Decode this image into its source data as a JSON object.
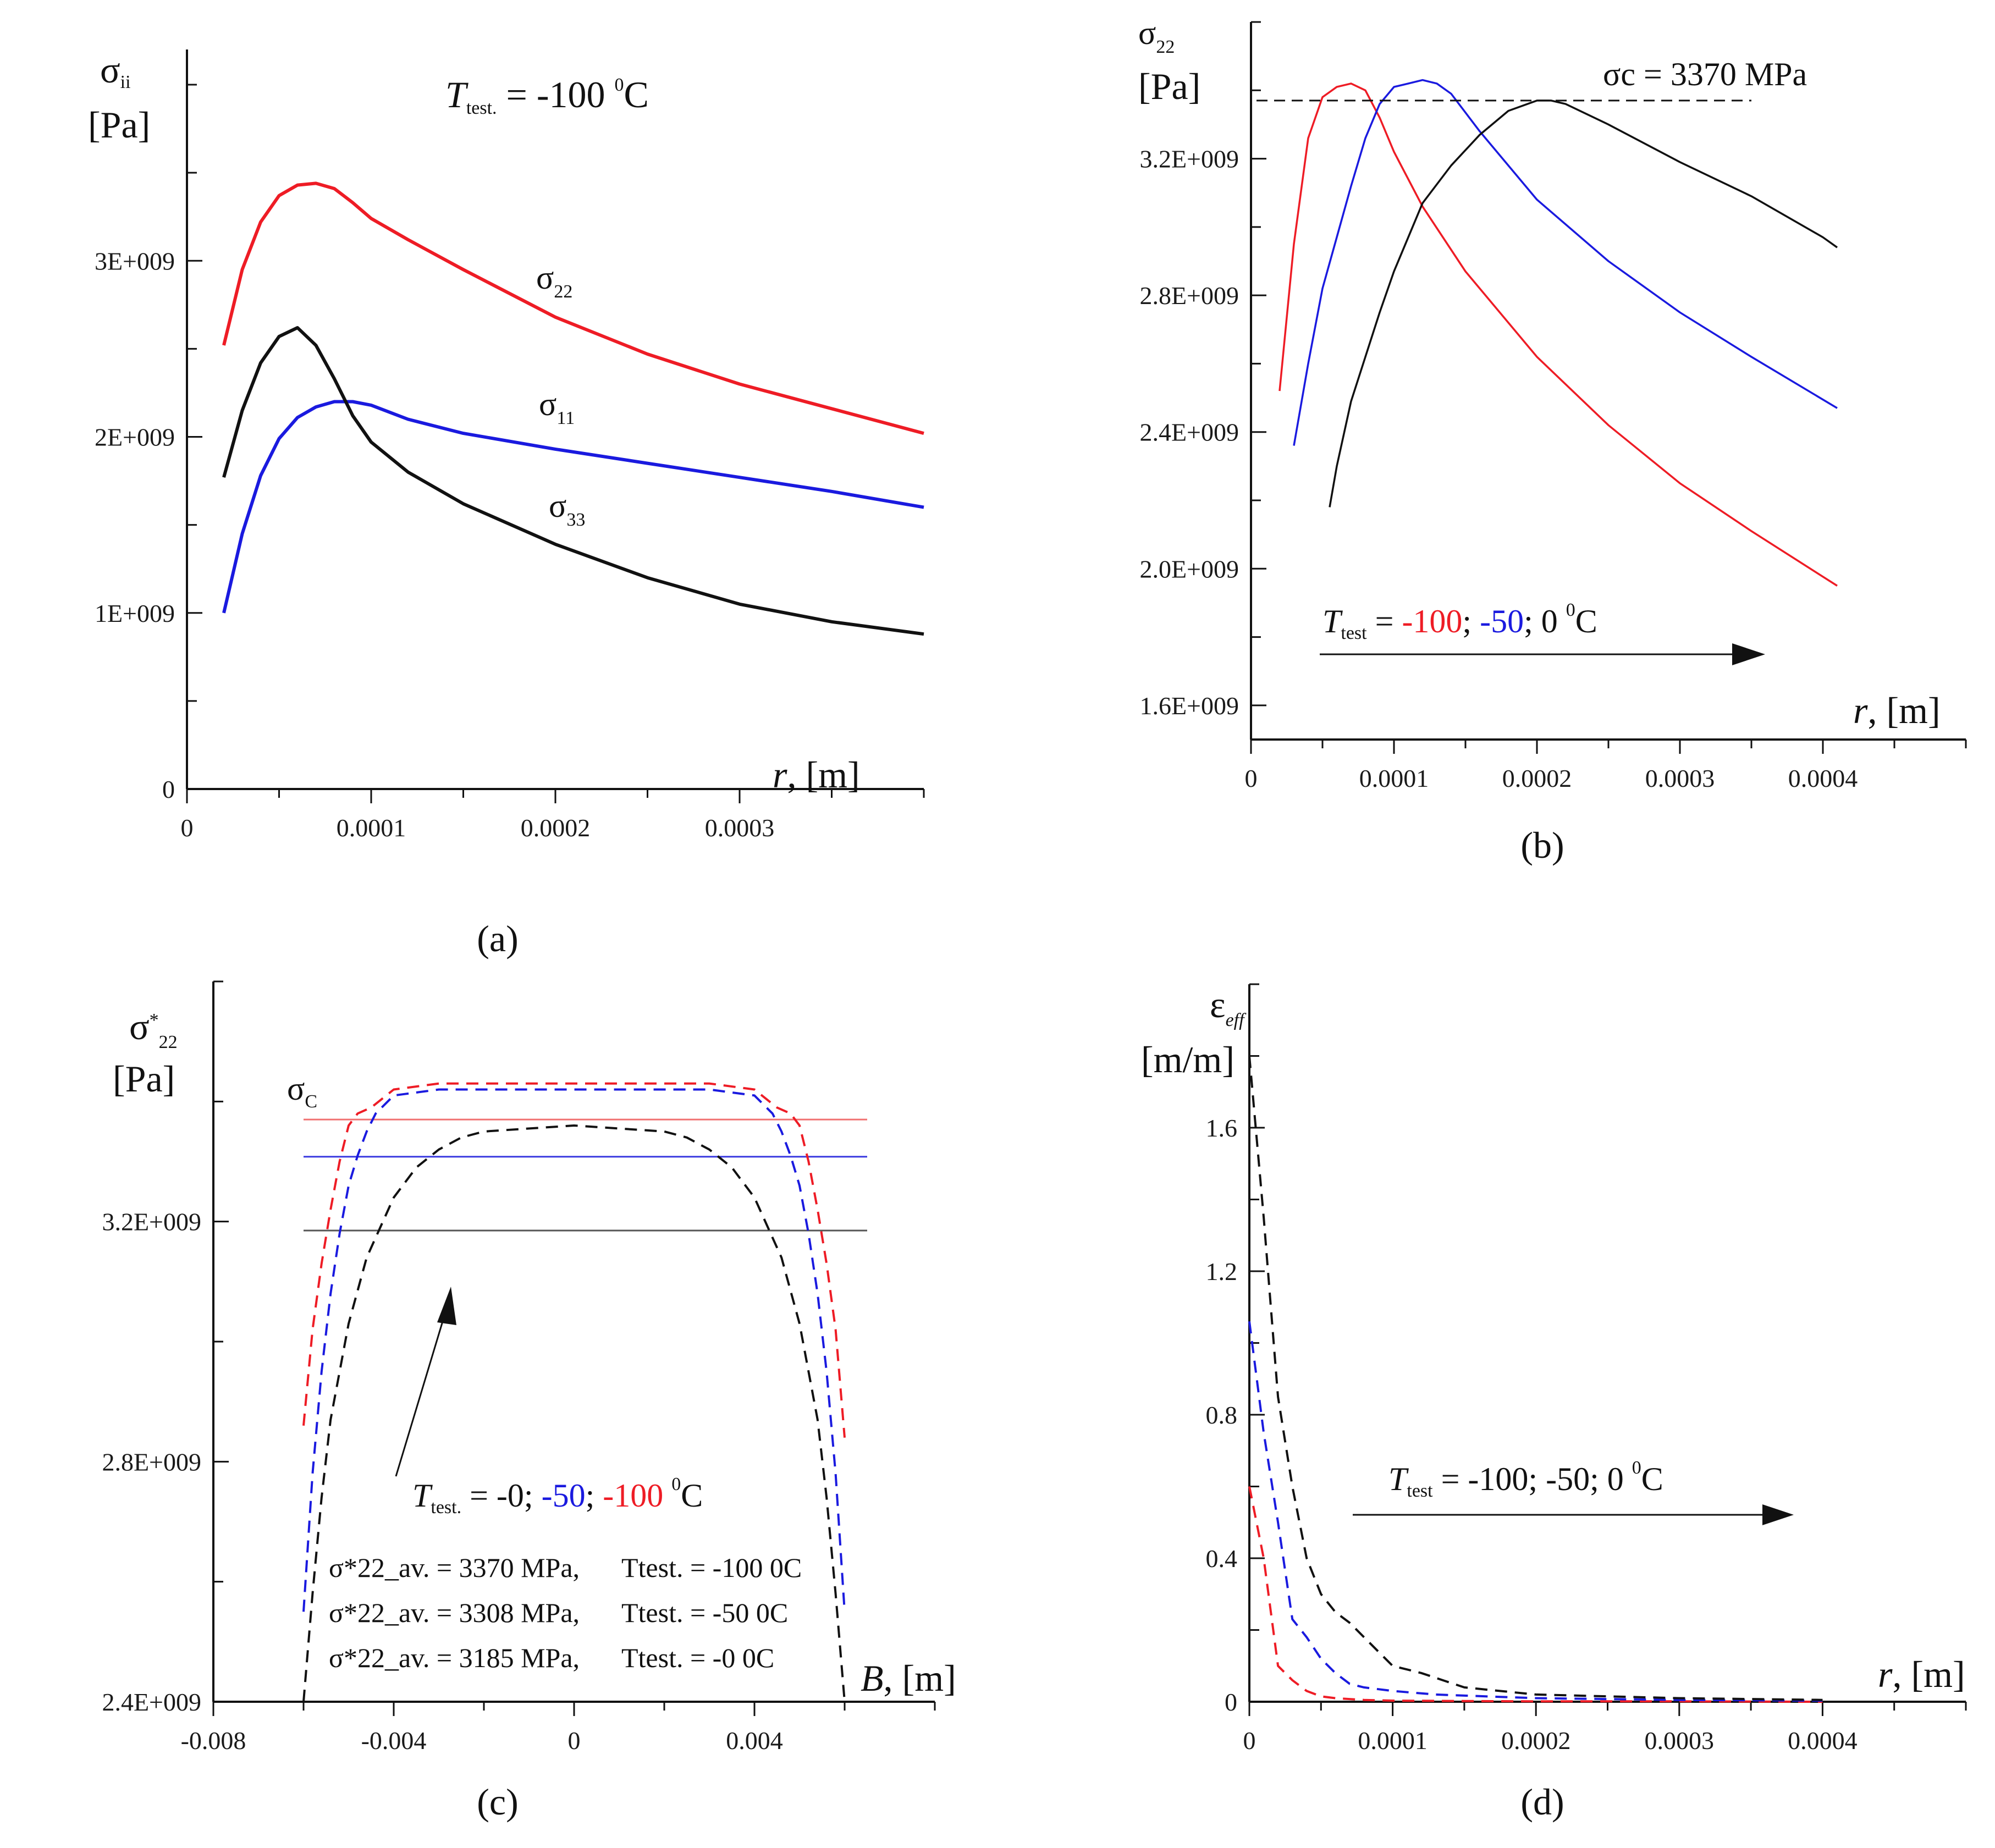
{
  "chart_data": [
    {
      "panel": "(a)",
      "type": "line",
      "ylabel_symbol": "σii",
      "ylabel_unit": "[Pa]",
      "xlabel": "r, [m]",
      "annotation": "T test. = -100 0C",
      "ylim": [
        0,
        4200000000.0
      ],
      "xlim": [
        0,
        0.0004
      ],
      "yticks": [
        0,
        1000000000.0,
        2000000000.0,
        3000000000.0
      ],
      "ytick_labels": [
        "0",
        "1E+009",
        "2E+009",
        "3E+009"
      ],
      "xticks": [
        0,
        0.0001,
        0.0002,
        0.0003
      ],
      "xtick_labels": [
        "0",
        "0.0001",
        "0.0002",
        "0.0003"
      ],
      "series": [
        {
          "name": "σ22",
          "color": "#ee1c25",
          "dashed": false,
          "x": [
            2e-05,
            3e-05,
            4e-05,
            5e-05,
            6e-05,
            7e-05,
            8e-05,
            9e-05,
            0.0001,
            0.00012,
            0.00015,
            0.0002,
            0.00025,
            0.0003,
            0.00035,
            0.0004
          ],
          "y": [
            2520000000.0,
            2950000000.0,
            3220000000.0,
            3370000000.0,
            3430000000.0,
            3440000000.0,
            3410000000.0,
            3330000000.0,
            3240000000.0,
            3120000000.0,
            2950000000.0,
            2680000000.0,
            2470000000.0,
            2300000000.0,
            2160000000.0,
            2020000000.0
          ]
        },
        {
          "name": "σ11",
          "color": "#1a1adf",
          "dashed": false,
          "x": [
            2e-05,
            3e-05,
            4e-05,
            5e-05,
            6e-05,
            7e-05,
            8e-05,
            9e-05,
            0.0001,
            0.00012,
            0.00015,
            0.0002,
            0.00025,
            0.0003,
            0.00035,
            0.0004
          ],
          "y": [
            1000000000.0,
            1450000000.0,
            1780000000.0,
            1990000000.0,
            2110000000.0,
            2170000000.0,
            2200000000.0,
            2200000000.0,
            2180000000.0,
            2100000000.0,
            2020000000.0,
            1930000000.0,
            1850000000.0,
            1770000000.0,
            1690000000.0,
            1600000000.0
          ]
        },
        {
          "name": "σ33",
          "color": "#111111",
          "dashed": false,
          "x": [
            2e-05,
            3e-05,
            4e-05,
            5e-05,
            6e-05,
            7e-05,
            8e-05,
            9e-05,
            0.0001,
            0.00012,
            0.00015,
            0.0002,
            0.00025,
            0.0003,
            0.00035,
            0.0004
          ],
          "y": [
            1770000000.0,
            2150000000.0,
            2420000000.0,
            2570000000.0,
            2620000000.0,
            2520000000.0,
            2330000000.0,
            2120000000.0,
            1970000000.0,
            1800000000.0,
            1620000000.0,
            1390000000.0,
            1200000000.0,
            1050000000.0,
            950000000.0,
            880000000.0
          ]
        }
      ],
      "curve_labels": [
        {
          "text": "σ",
          "sub": "22"
        },
        {
          "text": "σ",
          "sub": "11"
        },
        {
          "text": "σ",
          "sub": "33"
        }
      ]
    },
    {
      "panel": "(b)",
      "type": "line",
      "ylabel_symbol": "σ22",
      "ylabel_unit": "[Pa]",
      "xlabel": "r, [m]",
      "threshold_label": "σc = 3370 MPa",
      "threshold_value": 3370000000.0,
      "legend_text": [
        "T test",
        " = ",
        "-100",
        "; ",
        "-50",
        "; 0 ",
        "0",
        "C"
      ],
      "ylim": [
        1500000000.0,
        3600000000.0
      ],
      "xlim": [
        0,
        0.0005
      ],
      "yticks": [
        1600000000.0,
        2000000000.0,
        2400000000.0,
        2800000000.0,
        3200000000.0
      ],
      "ytick_labels": [
        "1.6E+009",
        "2.0E+009",
        "2.4E+009",
        "2.8E+009",
        "3.2E+009"
      ],
      "xticks": [
        0,
        0.0001,
        0.0002,
        0.0003,
        0.0004
      ],
      "xtick_labels": [
        "0",
        "0.0001",
        "0.0002",
        "0.0003",
        "0.0004"
      ],
      "series": [
        {
          "name": "-100",
          "color": "#ee1c25",
          "dashed": false,
          "x": [
            2e-05,
            3e-05,
            4e-05,
            5e-05,
            6e-05,
            7e-05,
            8e-05,
            9e-05,
            0.0001,
            0.00012,
            0.00015,
            0.0002,
            0.00025,
            0.0003,
            0.00035,
            0.00041
          ],
          "y": [
            2520000000.0,
            2950000000.0,
            3260000000.0,
            3380000000.0,
            3410000000.0,
            3420000000.0,
            3400000000.0,
            3320000000.0,
            3220000000.0,
            3060000000.0,
            2870000000.0,
            2620000000.0,
            2420000000.0,
            2250000000.0,
            2110000000.0,
            1950000000.0
          ]
        },
        {
          "name": "-50",
          "color": "#1a1adf",
          "dashed": false,
          "x": [
            3e-05,
            4e-05,
            5e-05,
            6e-05,
            7e-05,
            8e-05,
            9e-05,
            0.0001,
            0.00011,
            0.00012,
            0.00013,
            0.00014,
            0.00016,
            0.0002,
            0.00025,
            0.0003,
            0.00035,
            0.00041
          ],
          "y": [
            2360000000.0,
            2600000000.0,
            2820000000.0,
            2970000000.0,
            3120000000.0,
            3260000000.0,
            3360000000.0,
            3410000000.0,
            3420000000.0,
            3430000000.0,
            3420000000.0,
            3390000000.0,
            3280000000.0,
            3080000000.0,
            2900000000.0,
            2750000000.0,
            2620000000.0,
            2470000000.0
          ]
        },
        {
          "name": "0",
          "color": "#111111",
          "dashed": false,
          "x": [
            5.5e-05,
            6e-05,
            7e-05,
            8e-05,
            9e-05,
            0.0001,
            0.00012,
            0.00014,
            0.00016,
            0.00018,
            0.0002,
            0.00021,
            0.00022,
            0.00025,
            0.0003,
            0.00035,
            0.0004,
            0.00041
          ],
          "y": [
            2180000000.0,
            2300000000.0,
            2490000000.0,
            2620000000.0,
            2750000000.0,
            2870000000.0,
            3070000000.0,
            3180000000.0,
            3270000000.0,
            3340000000.0,
            3370000000.0,
            3370000000.0,
            3360000000.0,
            3300000000.0,
            3190000000.0,
            3090000000.0,
            2970000000.0,
            2940000000.0
          ]
        }
      ]
    },
    {
      "panel": "(c)",
      "type": "line",
      "ylabel_symbol": "σ*22",
      "ylabel_unit": "[Pa]",
      "xlabel": "B, [m]",
      "threshold_label": "σC",
      "legend_text": [
        "T test.",
        " = -0; ",
        "-50",
        "; ",
        "-100",
        " 0C"
      ],
      "averages": [
        {
          "label": "σ*22_av. = 3370 MPa,",
          "temp": "Ttest. = -100 0C"
        },
        {
          "label": "σ*22_av. = 3308 MPa,",
          "temp": "Ttest. = -50 0C"
        },
        {
          "label": "σ*22_av. = 3185 MPa,",
          "temp": "Ttest. = -0 0C"
        }
      ],
      "ylim": [
        2400000000.0,
        3600000000.0
      ],
      "xlim": [
        -0.008,
        0.008
      ],
      "yticks": [
        2400000000.0,
        2800000000.0,
        3200000000.0
      ],
      "ytick_labels": [
        "2.4E+009",
        "2.8E+009",
        "3.2E+009"
      ],
      "xticks": [
        -0.008,
        -0.004,
        0,
        0.004
      ],
      "xtick_labels": [
        "-0.008",
        "-0.004",
        "0",
        "0.004"
      ],
      "hlines": [
        {
          "value": 3370000000.0,
          "color": "#f07070"
        },
        {
          "value": 3308000000.0,
          "color": "#3a3ae0"
        },
        {
          "value": 3185000000.0,
          "color": "#555555"
        }
      ],
      "series": [
        {
          "name": "-100",
          "color": "#ee1c25",
          "dashed": true,
          "x": [
            -0.006,
            -0.0058,
            -0.0056,
            -0.0054,
            -0.0052,
            -0.005,
            -0.0048,
            -0.0045,
            -0.004,
            -0.003,
            -0.002,
            0,
            0.002,
            0.003,
            0.004,
            0.0045,
            0.0048,
            0.005,
            0.0052,
            0.0054,
            0.0056,
            0.0058,
            0.006
          ],
          "y": [
            2860000000.0,
            3020000000.0,
            3130000000.0,
            3220000000.0,
            3300000000.0,
            3360000000.0,
            3380000000.0,
            3390000000.0,
            3420000000.0,
            3430000000.0,
            3430000000.0,
            3430000000.0,
            3430000000.0,
            3430000000.0,
            3420000000.0,
            3390000000.0,
            3380000000.0,
            3360000000.0,
            3300000000.0,
            3220000000.0,
            3130000000.0,
            3020000000.0,
            2840000000.0
          ]
        },
        {
          "name": "-50",
          "color": "#1a1adf",
          "dashed": true,
          "x": [
            -0.006,
            -0.0058,
            -0.0056,
            -0.0054,
            -0.0052,
            -0.005,
            -0.0048,
            -0.0046,
            -0.0044,
            -0.004,
            -0.003,
            0,
            0.003,
            0.004,
            0.0044,
            0.0046,
            0.0048,
            0.005,
            0.0052,
            0.0054,
            0.0056,
            0.0058,
            0.006
          ],
          "y": [
            2550000000.0,
            2780000000.0,
            2950000000.0,
            3080000000.0,
            3180000000.0,
            3260000000.0,
            3310000000.0,
            3350000000.0,
            3380000000.0,
            3410000000.0,
            3420000000.0,
            3420000000.0,
            3420000000.0,
            3410000000.0,
            3380000000.0,
            3350000000.0,
            3310000000.0,
            3260000000.0,
            3180000000.0,
            3080000000.0,
            2950000000.0,
            2780000000.0,
            2550000000.0
          ]
        },
        {
          "name": "-0",
          "color": "#111111",
          "dashed": true,
          "x": [
            -0.006,
            -0.0058,
            -0.0056,
            -0.0054,
            -0.005,
            -0.0046,
            -0.004,
            -0.0035,
            -0.003,
            -0.0025,
            -0.002,
            0,
            0.002,
            0.0025,
            0.003,
            0.0035,
            0.004,
            0.0046,
            0.005,
            0.0054,
            0.0056,
            0.0058,
            0.006
          ],
          "y": [
            2400000000.0,
            2580000000.0,
            2740000000.0,
            2870000000.0,
            3030000000.0,
            3140000000.0,
            3240000000.0,
            3290000000.0,
            3320000000.0,
            3340000000.0,
            3350000000.0,
            3360000000.0,
            3350000000.0,
            3340000000.0,
            3320000000.0,
            3290000000.0,
            3240000000.0,
            3140000000.0,
            3030000000.0,
            2870000000.0,
            2740000000.0,
            2580000000.0,
            2400000000.0
          ]
        }
      ]
    },
    {
      "panel": "(d)",
      "type": "line",
      "ylabel_symbol": "εeff",
      "ylabel_unit": "[m/m]",
      "xlabel": "r, [m]",
      "legend_text": [
        "T test",
        " = -100; -50; 0 ",
        "0",
        "C"
      ],
      "ylim": [
        0,
        2.0
      ],
      "xlim": [
        0,
        0.0005
      ],
      "yticks": [
        0,
        0.4,
        0.8,
        1.2,
        1.6
      ],
      "ytick_labels": [
        "0",
        "0.4",
        "0.8",
        "1.2",
        "1.6"
      ],
      "xticks": [
        0,
        0.0001,
        0.0002,
        0.0003,
        0.0004
      ],
      "xtick_labels": [
        "0",
        "0.0001",
        "0.0002",
        "0.0003",
        "0.0004"
      ],
      "series": [
        {
          "name": "-100",
          "color": "#ee1c25",
          "dashed": true,
          "x": [
            0,
            1e-05,
            2e-05,
            3e-05,
            4e-05,
            5e-05,
            6e-05,
            8e-05,
            0.0001,
            0.00015,
            0.0002,
            0.0003,
            0.0004
          ],
          "y": [
            0.6,
            0.4,
            0.1,
            0.06,
            0.03,
            0.015,
            0.01,
            0.005,
            0.003,
            0.002,
            0.001,
            0.001,
            0.0
          ]
        },
        {
          "name": "-50",
          "color": "#1a1adf",
          "dashed": true,
          "x": [
            0,
            1e-05,
            2e-05,
            3e-05,
            4e-05,
            5e-05,
            6e-05,
            7e-05,
            8e-05,
            0.0001,
            0.00013,
            0.0002,
            0.0003,
            0.0004
          ],
          "y": [
            1.06,
            0.75,
            0.5,
            0.23,
            0.18,
            0.12,
            0.08,
            0.05,
            0.04,
            0.03,
            0.02,
            0.01,
            0.005,
            0.003
          ]
        },
        {
          "name": "0",
          "color": "#111111",
          "dashed": true,
          "x": [
            0,
            1e-05,
            2e-05,
            3e-05,
            4e-05,
            5e-05,
            6e-05,
            7e-05,
            8e-05,
            9e-05,
            0.0001,
            0.00012,
            0.00015,
            0.0002,
            0.0003,
            0.0004
          ],
          "y": [
            1.8,
            1.35,
            0.85,
            0.6,
            0.4,
            0.3,
            0.25,
            0.22,
            0.18,
            0.14,
            0.1,
            0.08,
            0.04,
            0.02,
            0.01,
            0.005
          ]
        }
      ]
    }
  ]
}
